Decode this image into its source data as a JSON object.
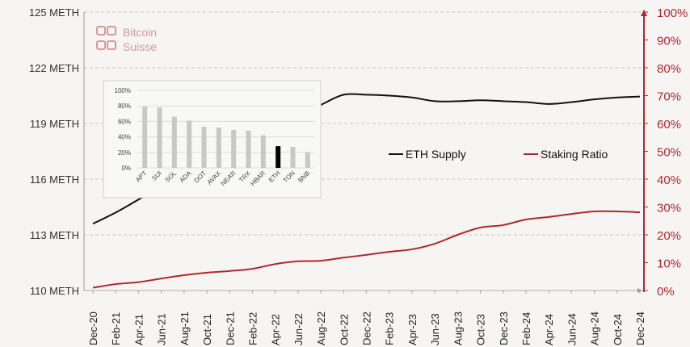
{
  "logo": {
    "line1": "Bitcoin",
    "line2": "Suisse"
  },
  "colors": {
    "supply": "#111111",
    "staking": "#b0282f",
    "inset_bar": "#c8c8c8",
    "inset_highlight": "#000000"
  },
  "chart_data": [
    {
      "type": "line",
      "categories": [
        "Dec-20",
        "Feb-21",
        "Apr-21",
        "Jun-21",
        "Aug-21",
        "Oct-21",
        "Dec-21",
        "Feb-22",
        "Apr-22",
        "Jun-22",
        "Aug-22",
        "Oct-22",
        "Dec-22",
        "Feb-23",
        "Apr-23",
        "Jun-23",
        "Aug-23",
        "Oct-23",
        "Dec-23",
        "Feb-24",
        "Apr-24",
        "Jun-24",
        "Aug-24",
        "Oct-24",
        "Dec-24"
      ],
      "series": [
        {
          "name": "ETH Supply",
          "axis": "left",
          "values": [
            113.6,
            114.2,
            114.9,
            115.6,
            116.4,
            117.1,
            117.8,
            118.4,
            119.0,
            119.4,
            120.0,
            120.55,
            120.55,
            120.5,
            120.4,
            120.2,
            120.2,
            120.25,
            120.2,
            120.15,
            120.05,
            120.15,
            120.3,
            120.4,
            120.45
          ]
        },
        {
          "name": "Staking Ratio",
          "axis": "right",
          "values": [
            1.0,
            2.3,
            3.0,
            4.3,
            5.5,
            6.4,
            7.0,
            7.8,
            9.5,
            10.5,
            10.7,
            11.8,
            12.8,
            13.9,
            14.8,
            16.8,
            20.0,
            22.6,
            23.5,
            25.5,
            26.4,
            27.5,
            28.4,
            28.4,
            28.1
          ]
        }
      ],
      "y_left": {
        "range": [
          110,
          125
        ],
        "ticks": [
          "110 METH",
          "113 METH",
          "116 METH",
          "119 METH",
          "122 METH",
          "125 METH"
        ],
        "tick_values": [
          110,
          113,
          116,
          119,
          122,
          125
        ]
      },
      "y_right": {
        "range": [
          0,
          100
        ],
        "ticks": [
          "0%",
          "10%",
          "20%",
          "30%",
          "40%",
          "50%",
          "60%",
          "70%",
          "80%",
          "90%",
          "100%"
        ],
        "tick_values": [
          0,
          10,
          20,
          30,
          40,
          50,
          60,
          70,
          80,
          90,
          100
        ]
      },
      "grid": true,
      "legend": "center-right"
    },
    {
      "type": "bar",
      "categories": [
        "APT",
        "SUI",
        "SOL",
        "ADA",
        "DOT",
        "AVAX",
        "NEAR",
        "TRX",
        "HBAR",
        "ETH",
        "TON",
        "BNB"
      ],
      "values": [
        79,
        78,
        66,
        61,
        53,
        52,
        49,
        48,
        42,
        28,
        27,
        20
      ],
      "highlight": "ETH",
      "ylim": [
        0,
        100
      ],
      "yticks": [
        "0%",
        "20%",
        "40%",
        "60%",
        "80%",
        "100%"
      ],
      "grid": true
    }
  ]
}
